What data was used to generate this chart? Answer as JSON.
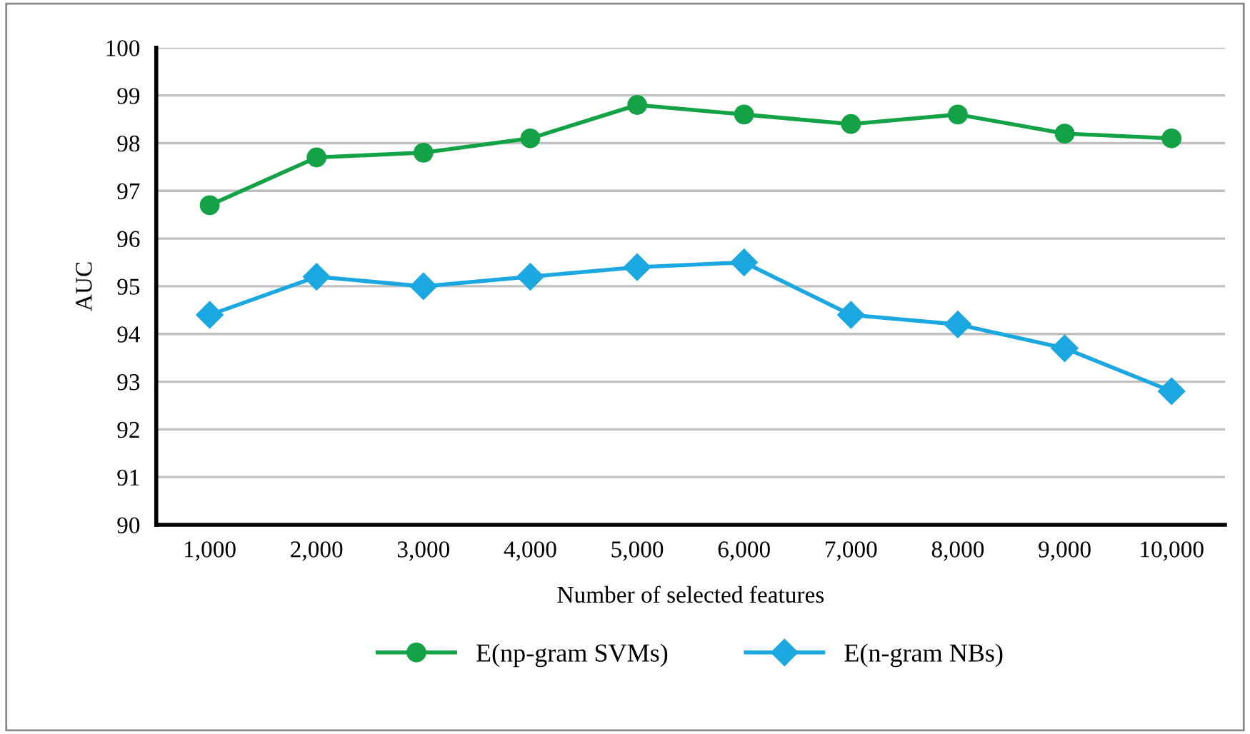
{
  "chart_data": {
    "type": "line",
    "xlabel": "Number of selected features",
    "ylabel": "AUC",
    "categories": [
      "1,000",
      "2,000",
      "3,000",
      "4,000",
      "5,000",
      "6,000",
      "7,000",
      "8,000",
      "9,000",
      "10,000"
    ],
    "series": [
      {
        "name": "E(np-gram SVMs)",
        "color": "#13a245",
        "marker": "circle",
        "values": [
          96.7,
          97.7,
          97.8,
          98.1,
          98.8,
          98.6,
          98.4,
          98.6,
          98.2,
          98.1
        ]
      },
      {
        "name": "E(n-gram NBs)",
        "color": "#1ba8e0",
        "marker": "diamond",
        "values": [
          94.4,
          95.2,
          95.0,
          95.2,
          95.4,
          95.5,
          94.4,
          94.2,
          93.7,
          92.8
        ]
      }
    ],
    "ylim": [
      90,
      100
    ],
    "yticks": [
      90,
      91,
      92,
      93,
      94,
      95,
      96,
      97,
      98,
      99,
      100
    ],
    "grid": "y",
    "legend": "bottom",
    "line_style": "solid"
  }
}
